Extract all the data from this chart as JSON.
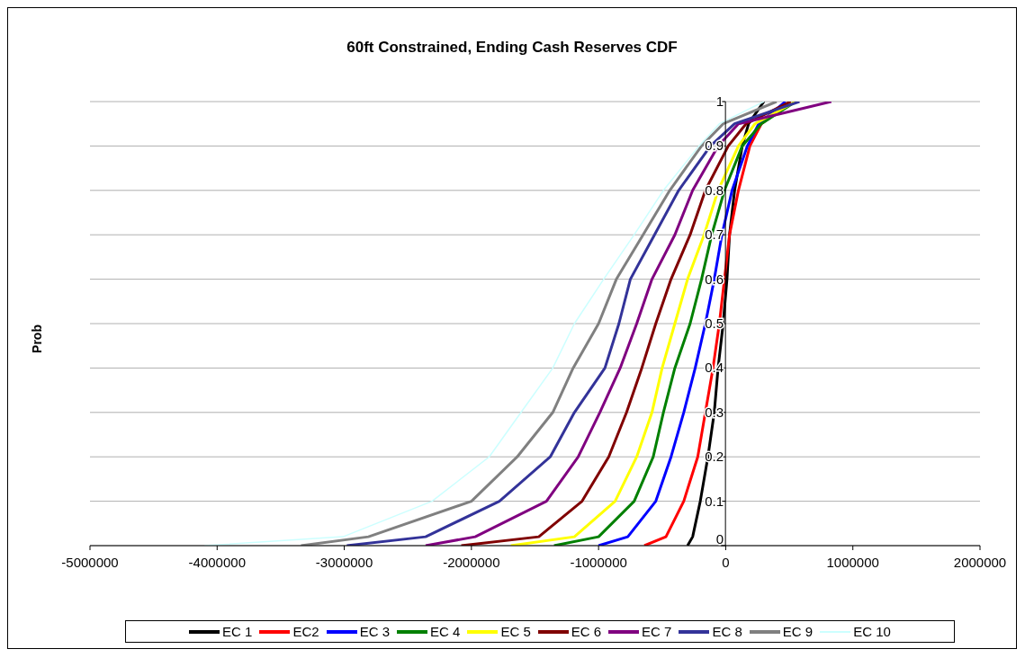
{
  "chart_data": {
    "type": "line",
    "title": "60ft Constrained, Ending Cash Reserves CDF",
    "ylabel": "Prob",
    "xlim": [
      -5000000,
      2000000
    ],
    "xticks": [
      -5000000,
      -4000000,
      -3000000,
      -2000000,
      -1000000,
      0,
      1000000,
      2000000
    ],
    "ylim": [
      0,
      1
    ],
    "yticks": [
      0,
      0.1,
      0.2,
      0.3,
      0.4,
      0.5,
      0.6,
      0.7,
      0.8,
      0.9,
      1
    ],
    "grid": "y",
    "legend": "bottom",
    "marker": "none",
    "series": [
      {
        "name": "EC 1",
        "color": "#000000",
        "x": [
          -300000,
          -260000,
          -200000,
          -140000,
          -90000,
          -60000,
          -20000,
          10000,
          30000,
          70000,
          130000,
          180000,
          300000
        ],
        "values": [
          0,
          0.02,
          0.1,
          0.2,
          0.3,
          0.4,
          0.5,
          0.6,
          0.7,
          0.8,
          0.9,
          0.95,
          1
        ]
      },
      {
        "name": "EC2",
        "color": "#ff0000",
        "x": [
          -640000,
          -470000,
          -330000,
          -220000,
          -160000,
          -100000,
          -50000,
          -10000,
          30000,
          100000,
          190000,
          280000,
          510000
        ],
        "values": [
          0,
          0.02,
          0.1,
          0.2,
          0.3,
          0.4,
          0.5,
          0.6,
          0.7,
          0.8,
          0.9,
          0.95,
          1
        ]
      },
      {
        "name": "EC 3",
        "color": "#0000ff",
        "x": [
          -1000000,
          -770000,
          -550000,
          -430000,
          -330000,
          -240000,
          -160000,
          -90000,
          -30000,
          50000,
          170000,
          260000,
          470000
        ],
        "values": [
          0,
          0.02,
          0.1,
          0.2,
          0.3,
          0.4,
          0.5,
          0.6,
          0.7,
          0.8,
          0.9,
          0.95,
          1
        ]
      },
      {
        "name": "EC 4",
        "color": "#008000",
        "x": [
          -1350000,
          -1000000,
          -720000,
          -570000,
          -490000,
          -400000,
          -280000,
          -190000,
          -110000,
          -10000,
          130000,
          280000,
          550000
        ],
        "values": [
          0,
          0.02,
          0.1,
          0.2,
          0.3,
          0.4,
          0.5,
          0.6,
          0.7,
          0.8,
          0.9,
          0.95,
          1
        ]
      },
      {
        "name": "EC 5",
        "color": "#ffff00",
        "x": [
          -1690000,
          -1190000,
          -870000,
          -700000,
          -580000,
          -500000,
          -400000,
          -300000,
          -170000,
          -60000,
          100000,
          230000,
          550000
        ],
        "values": [
          0,
          0.02,
          0.1,
          0.2,
          0.3,
          0.4,
          0.5,
          0.6,
          0.7,
          0.8,
          0.9,
          0.95,
          1
        ]
      },
      {
        "name": "EC 6",
        "color": "#800000",
        "x": [
          -2080000,
          -1470000,
          -1130000,
          -920000,
          -780000,
          -660000,
          -550000,
          -430000,
          -280000,
          -160000,
          20000,
          160000,
          510000
        ],
        "values": [
          0,
          0.02,
          0.1,
          0.2,
          0.3,
          0.4,
          0.5,
          0.6,
          0.7,
          0.8,
          0.9,
          0.95,
          1
        ]
      },
      {
        "name": "EC 7",
        "color": "#800080",
        "x": [
          -2360000,
          -1970000,
          -1410000,
          -1160000,
          -990000,
          -830000,
          -700000,
          -580000,
          -400000,
          -260000,
          -60000,
          100000,
          830000
        ],
        "values": [
          0,
          0.02,
          0.1,
          0.2,
          0.3,
          0.4,
          0.5,
          0.6,
          0.7,
          0.8,
          0.9,
          0.95,
          1
        ]
      },
      {
        "name": "EC 8",
        "color": "#333399",
        "x": [
          -2980000,
          -2360000,
          -1780000,
          -1380000,
          -1190000,
          -950000,
          -840000,
          -750000,
          -560000,
          -370000,
          -120000,
          70000,
          580000
        ],
        "values": [
          0,
          0.02,
          0.1,
          0.2,
          0.3,
          0.4,
          0.5,
          0.6,
          0.7,
          0.8,
          0.9,
          0.95,
          1
        ]
      },
      {
        "name": "EC 9",
        "color": "#808080",
        "x": [
          -3340000,
          -2810000,
          -2000000,
          -1640000,
          -1360000,
          -1200000,
          -1000000,
          -860000,
          -650000,
          -440000,
          -190000,
          -20000,
          400000
        ],
        "values": [
          0,
          0.02,
          0.1,
          0.2,
          0.3,
          0.4,
          0.5,
          0.6,
          0.7,
          0.8,
          0.9,
          0.95,
          1
        ]
      },
      {
        "name": "EC 10",
        "color": "#ccffff",
        "x": [
          -4100000,
          -3010000,
          -2310000,
          -1860000,
          -1610000,
          -1360000,
          -1190000,
          -960000,
          -720000,
          -490000,
          -210000,
          -50000,
          300000
        ],
        "values": [
          0,
          0.02,
          0.1,
          0.2,
          0.3,
          0.4,
          0.5,
          0.6,
          0.7,
          0.8,
          0.9,
          0.95,
          1
        ]
      }
    ]
  }
}
